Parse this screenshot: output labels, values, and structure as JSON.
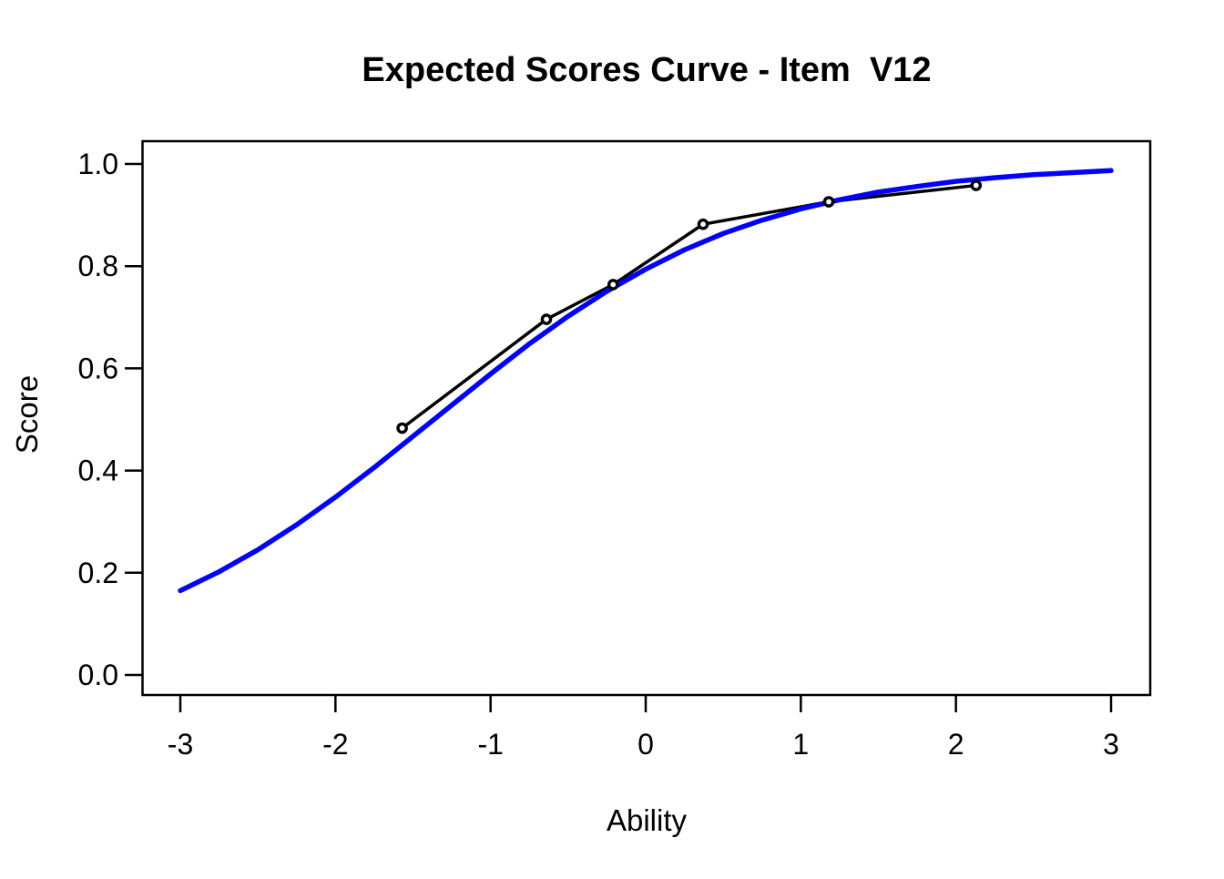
{
  "title": "Expected Scores Curve - Item  V12",
  "axes": {
    "xlabel": "Ability",
    "ylabel": "Score"
  },
  "colors": {
    "curve": "#0000FF",
    "empirical": "#000000",
    "axis": "#000000",
    "background": "#FFFFFF"
  },
  "chart_data": {
    "type": "line",
    "title": "Expected Scores Curve - Item  V12",
    "xlabel": "Ability",
    "ylabel": "Score",
    "xlim": [
      -3.25,
      3.25
    ],
    "ylim": [
      -0.04,
      1.045
    ],
    "grid": false,
    "legend": "none",
    "x_tick_values": [
      -3,
      -2,
      -1,
      0,
      1,
      2,
      3
    ],
    "x_tick_labels": [
      "-3",
      "-2",
      "-1",
      "0",
      "1",
      "2",
      "3"
    ],
    "y_tick_values": [
      0.0,
      0.2,
      0.4,
      0.6,
      0.8,
      1.0
    ],
    "y_tick_labels": [
      "0.0",
      "0.2",
      "0.4",
      "0.6",
      "0.8",
      "1.0"
    ],
    "series": [
      {
        "name": "expected-score-curve",
        "style": "thick-smooth-line",
        "color": "#0000FF",
        "x": [
          -3,
          -2.75,
          -2.5,
          -2.25,
          -2,
          -1.75,
          -1.5,
          -1.25,
          -1,
          -0.75,
          -0.5,
          -0.25,
          0,
          0.25,
          0.5,
          0.75,
          1,
          1.25,
          1.5,
          1.75,
          2,
          2.25,
          2.5,
          2.75,
          3
        ],
        "y": [
          0.165,
          0.202,
          0.245,
          0.294,
          0.348,
          0.406,
          0.467,
          0.528,
          0.589,
          0.648,
          0.702,
          0.751,
          0.794,
          0.832,
          0.864,
          0.89,
          0.912,
          0.93,
          0.945,
          0.956,
          0.966,
          0.973,
          0.979,
          0.983,
          0.987
        ]
      },
      {
        "name": "observed-average-scores",
        "style": "line-with-open-circles",
        "color": "#000000",
        "x": [
          -1.57,
          -0.64,
          -0.21,
          0.37,
          1.18,
          2.13
        ],
        "y": [
          0.483,
          0.696,
          0.764,
          0.882,
          0.926,
          0.958
        ]
      }
    ]
  }
}
